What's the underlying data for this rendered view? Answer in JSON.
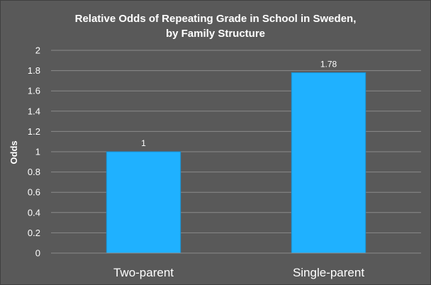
{
  "chart_data": {
    "type": "bar",
    "title_lines": [
      "Relative Odds of Repeating Grade in School in Sweden,",
      "by Family Structure"
    ],
    "categories": [
      "Two-parent",
      "Single-parent"
    ],
    "values": [
      1,
      1.78
    ],
    "data_labels": [
      "1",
      "1.78"
    ],
    "xlabel": "",
    "ylabel": "Odds",
    "ylim": [
      0,
      2
    ],
    "yticks": [
      "0",
      "0.2",
      "0.4",
      "0.6",
      "0.8",
      "1",
      "1.2",
      "1.4",
      "1.6",
      "1.8",
      "2"
    ],
    "grid": true,
    "legend": "none",
    "colors": {
      "background": "#595959",
      "bar": "#1fb1ff",
      "bar_edge": "#1a8fd0",
      "text": "#ffffff",
      "grid": "#8a8a8a"
    }
  }
}
